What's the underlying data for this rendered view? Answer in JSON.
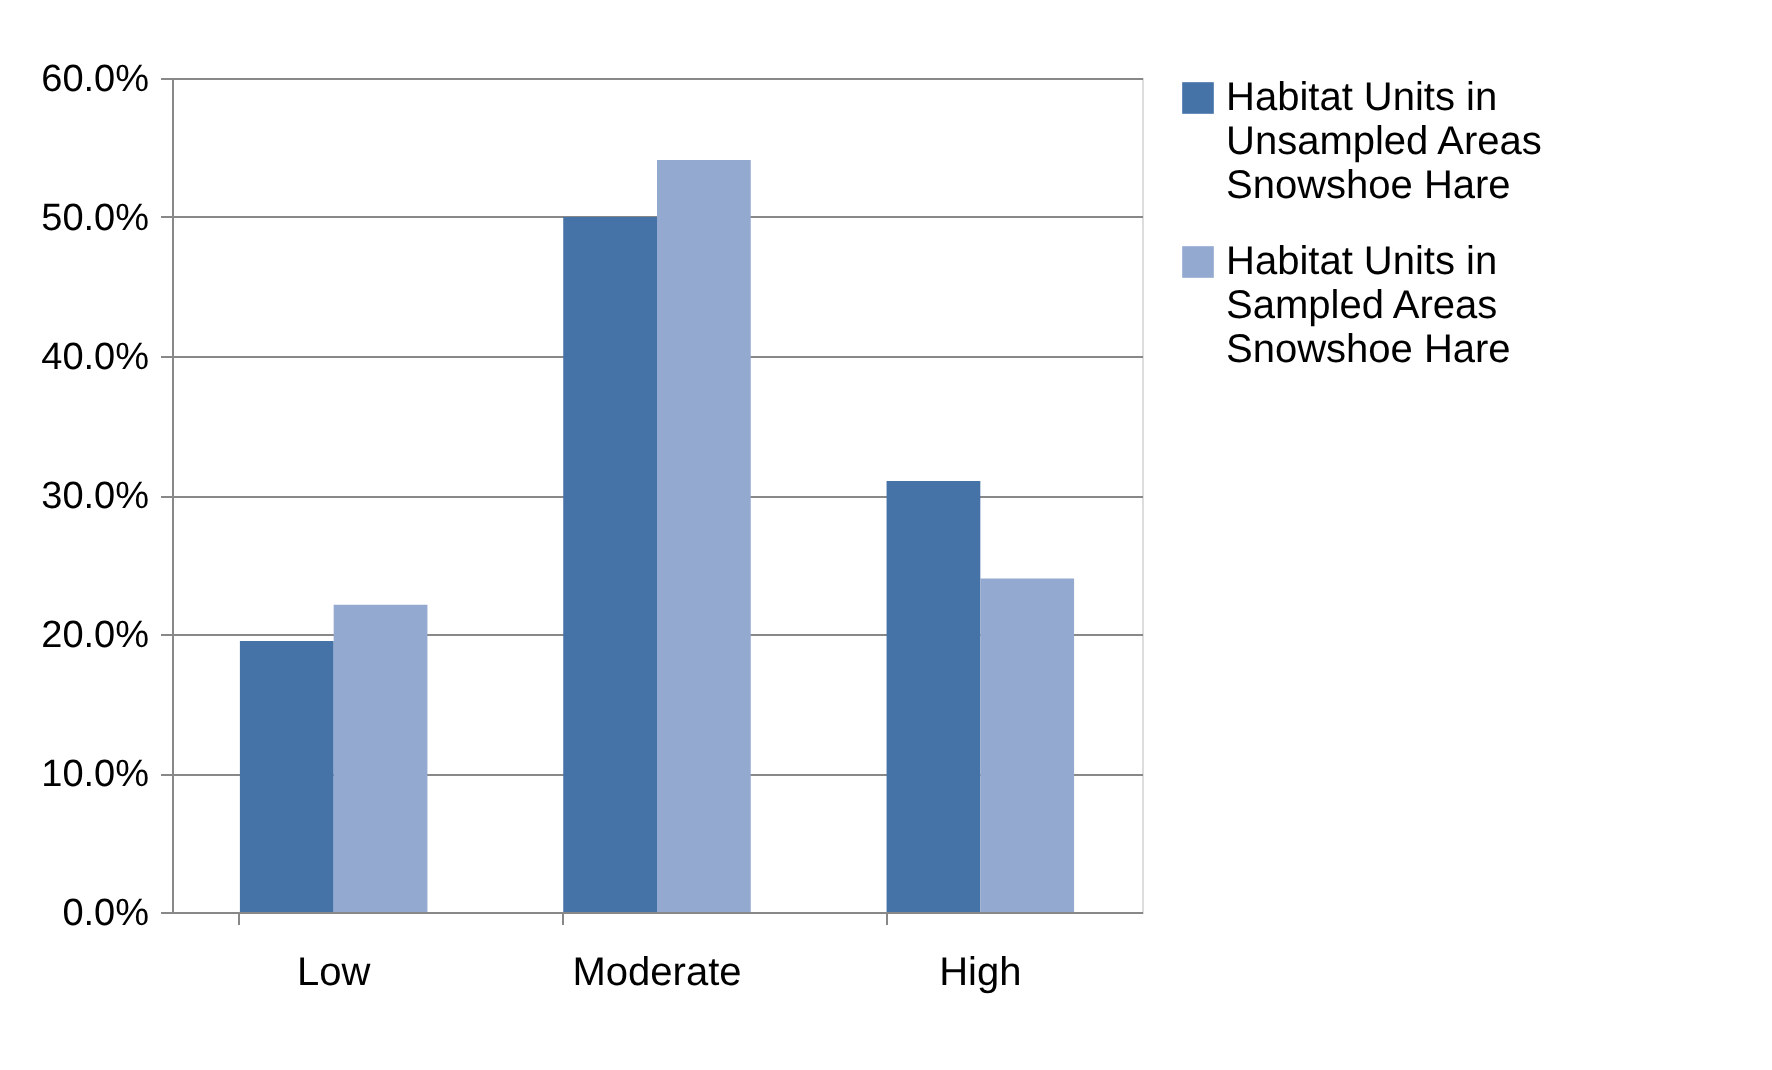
{
  "chart_data": {
    "type": "bar",
    "categories": [
      "Low",
      "Moderate",
      "High"
    ],
    "series": [
      {
        "name": "Habitat Units in Unsampled Areas Snowshoe Hare",
        "color": "#4572a7",
        "values": [
          19.5,
          50.0,
          31.0
        ]
      },
      {
        "name": "Habitat Units in Sampled Areas Snowshoe Hare",
        "color": "#94a9d0",
        "values": [
          22.1,
          54.1,
          24.0
        ]
      }
    ],
    "ylim": [
      0,
      60
    ],
    "yticks": [
      {
        "value": 0,
        "label": "0.0%"
      },
      {
        "value": 10,
        "label": "10.0%"
      },
      {
        "value": 20,
        "label": "20.0%"
      },
      {
        "value": 30,
        "label": "30.0%"
      },
      {
        "value": 40,
        "label": "40.0%"
      },
      {
        "value": 50,
        "label": "50.0%"
      },
      {
        "value": 60,
        "label": "60.0%"
      }
    ],
    "grid": "y",
    "legend": "right"
  }
}
